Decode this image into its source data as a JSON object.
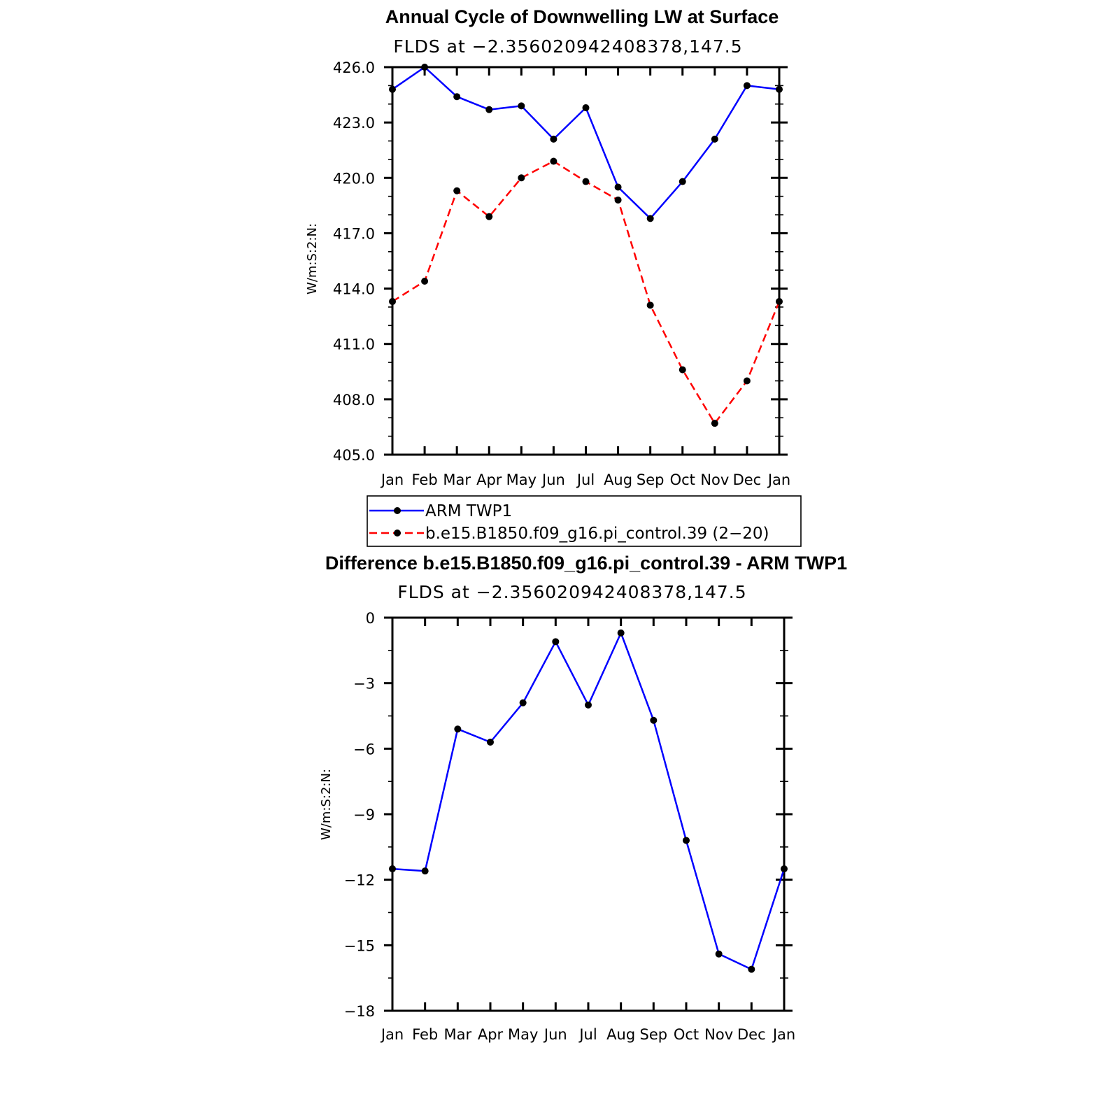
{
  "chart_data": [
    {
      "type": "line",
      "title": "Annual Cycle of Downwelling LW at Surface",
      "subtitle": "FLDS at −2.356020942408378,147.5",
      "ylabel": "W/m:S:2:N:",
      "categories": [
        "Jan",
        "Feb",
        "Mar",
        "Apr",
        "May",
        "Jun",
        "Jul",
        "Aug",
        "Sep",
        "Oct",
        "Nov",
        "Dec",
        "Jan"
      ],
      "ylim": [
        405.0,
        426.0
      ],
      "yticks": [
        "426.0",
        "423.0",
        "420.0",
        "417.0",
        "414.0",
        "411.0",
        "408.0",
        "405.0"
      ],
      "series": [
        {
          "name": "ARM  TWP1",
          "color": "#0000ff",
          "dash": "solid",
          "values": [
            424.8,
            426.0,
            424.4,
            423.7,
            423.9,
            422.1,
            423.8,
            419.5,
            417.8,
            419.8,
            422.1,
            425.0,
            424.8
          ]
        },
        {
          "name": "b.e15.B1850.f09_g16.pi_control.39 (2−20)",
          "color": "#ff0000",
          "dash": "dashed",
          "values": [
            413.3,
            414.4,
            419.3,
            417.9,
            420.0,
            420.9,
            419.8,
            418.8,
            413.1,
            409.6,
            406.7,
            409.0,
            413.3
          ]
        }
      ],
      "legend": {
        "placement": "below"
      }
    },
    {
      "type": "line",
      "title": "Difference b.e15.B1850.f09_g16.pi_control.39 - ARM TWP1",
      "subtitle": "FLDS at −2.356020942408378,147.5",
      "ylabel": "W/m:S:2:N:",
      "categories": [
        "Jan",
        "Feb",
        "Mar",
        "Apr",
        "May",
        "Jun",
        "Jul",
        "Aug",
        "Sep",
        "Oct",
        "Nov",
        "Dec",
        "Jan"
      ],
      "ylim": [
        -18,
        0
      ],
      "yticks": [
        "0",
        "−3",
        "−6",
        "−9",
        "−12",
        "−15",
        "−18"
      ],
      "series": [
        {
          "name": "",
          "color": "#0000ff",
          "dash": "solid",
          "values": [
            -11.5,
            -11.6,
            -5.1,
            -5.7,
            -3.9,
            -1.1,
            -4.0,
            -0.7,
            -4.7,
            -10.2,
            -15.4,
            -16.1,
            -11.5
          ]
        }
      ]
    }
  ]
}
